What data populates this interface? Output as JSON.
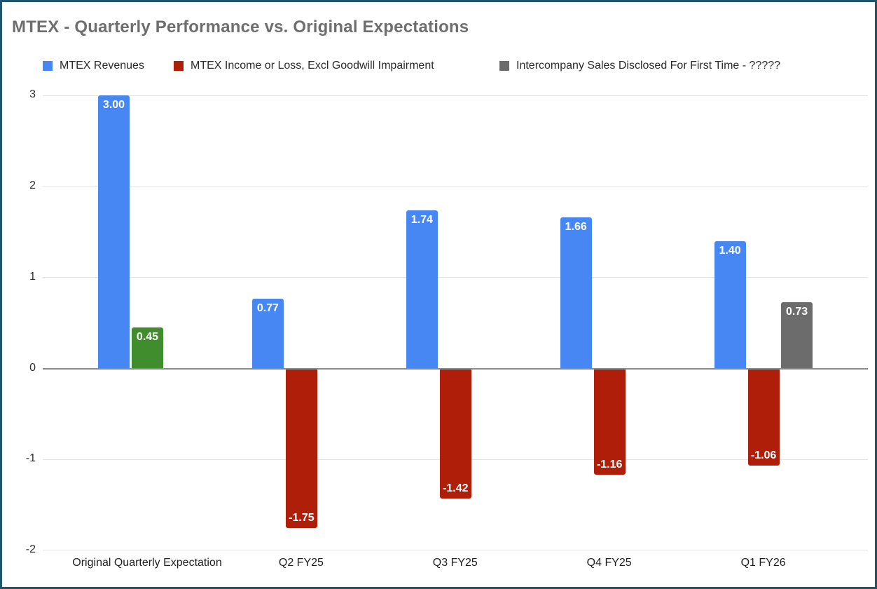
{
  "frame": {
    "border_color": "#1e556a",
    "background_color": "#ffffff"
  },
  "chart_data": {
    "type": "bar",
    "title": "MTEX - Quarterly Performance vs. Original Expectations",
    "title_color": "#6e6e6e",
    "xlabel": "",
    "ylabel": "",
    "categories": [
      "Original Quarterly Expectation",
      "Q2 FY25",
      "Q3 FY25",
      "Q4 FY25",
      "Q1 FY26"
    ],
    "series": [
      {
        "name": "MTEX Revenues",
        "color": "#4687f4",
        "values": [
          3.0,
          0.77,
          1.74,
          1.66,
          1.4
        ],
        "value_labels": [
          "3.00",
          "0.77",
          "1.74",
          "1.66",
          "1.40"
        ]
      },
      {
        "name": "MTEX Income or Loss, Excl Goodwill Impairment",
        "color": "#ae1e08",
        "point_colors": {
          "0": "#3f8d2c"
        },
        "values": [
          0.45,
          -1.75,
          -1.42,
          -1.16,
          -1.06
        ],
        "value_labels": [
          "0.45",
          "-1.75",
          "-1.42",
          "-1.16",
          "-1.06"
        ]
      },
      {
        "name": "Intercompany Sales Disclosed For First Time - ?????",
        "color": "#6c6c6c",
        "values": [
          null,
          null,
          null,
          null,
          0.73
        ],
        "value_labels": [
          null,
          null,
          null,
          null,
          "0.73"
        ]
      }
    ],
    "yticks": [
      3,
      2,
      1,
      0,
      -1,
      -2
    ],
    "ylim": [
      -2,
      3
    ],
    "grid": true,
    "legend_position": "top",
    "gridline_color": "#e3e3e3",
    "zero_line_color": "#8a8a8a",
    "axis_label_color": "#2e2e2e",
    "value_label_color": "#ffffff"
  }
}
